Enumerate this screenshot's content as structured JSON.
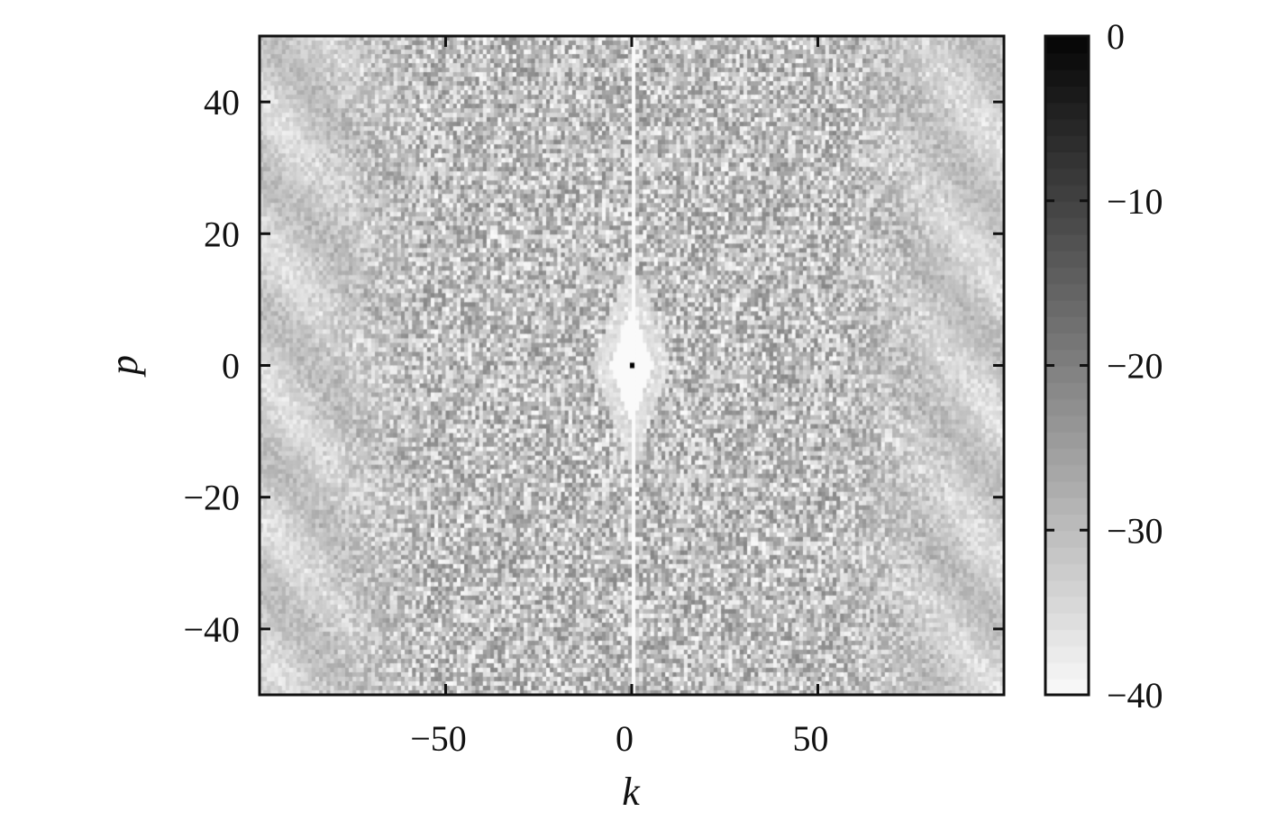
{
  "chart_data": {
    "type": "heatmap",
    "title": "",
    "xlabel": "k",
    "ylabel": "p",
    "xlim": [
      -100,
      100
    ],
    "ylim": [
      -50,
      50
    ],
    "xticks": [
      -50,
      0,
      50
    ],
    "xtick_labels": [
      "−50",
      "0",
      "50"
    ],
    "yticks": [
      40,
      20,
      0,
      -20,
      -40
    ],
    "ytick_labels": [
      "40",
      "20",
      "0",
      "−20",
      "−40"
    ],
    "colormap": "gray_reversed",
    "colorbar": {
      "range": [
        -40,
        0
      ],
      "ticks": [
        0,
        -10,
        -20,
        -30,
        -40
      ],
      "tick_labels": [
        "0",
        "−10",
        "−20",
        "−30",
        "−40"
      ]
    },
    "features": {
      "peak": {
        "k": 0,
        "p": 0,
        "value": 0
      },
      "background_range": [
        -40,
        -15
      ]
    },
    "grid": false
  }
}
